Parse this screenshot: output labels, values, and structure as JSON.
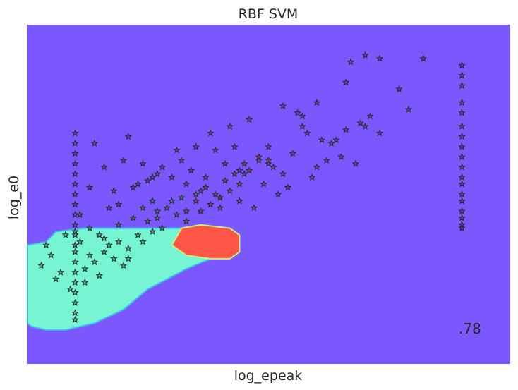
{
  "chart_data": {
    "type": "scatter",
    "title": "RBF SVM",
    "xlabel": "log_epeak",
    "ylabel": "log_e0",
    "score": ".78",
    "xticks": [],
    "yticks": [],
    "xlim": [
      0,
      10
    ],
    "ylim": [
      0,
      10
    ],
    "grid": false,
    "marker": "star",
    "background_colors": {
      "region_outside": "#7b57fe",
      "region_class_1": "#77f5d2",
      "region_class_2": "#fe5647",
      "boundary_1": "#3dbdf0",
      "boundary_2": "#c9f07a",
      "star_edge": "#2b2b2b",
      "star_class_0": "#3d2a8c",
      "star_class_1": "#1f7a40",
      "star_class_2": "#9b1d1d"
    },
    "decision_regions": [
      {
        "class": 1,
        "color": "#77f5d2",
        "polygon": [
          [
            0,
            3.5
          ],
          [
            0.4,
            3.6
          ],
          [
            0.6,
            3.9
          ],
          [
            1.2,
            4.0
          ],
          [
            2.3,
            4.0
          ],
          [
            3.2,
            4.0
          ],
          [
            3.8,
            3.9
          ],
          [
            3.8,
            3.1
          ],
          [
            3.3,
            2.8
          ],
          [
            2.5,
            2.2
          ],
          [
            2.0,
            1.6
          ],
          [
            1.4,
            1.2
          ],
          [
            0.8,
            1.0
          ],
          [
            0.4,
            1.0
          ],
          [
            0.1,
            1.1
          ],
          [
            0,
            1.2
          ]
        ]
      },
      {
        "class": 2,
        "color": "#fe5647",
        "polygon": [
          [
            3.0,
            3.5
          ],
          [
            3.3,
            3.2
          ],
          [
            3.8,
            3.1
          ],
          [
            4.2,
            3.1
          ],
          [
            4.4,
            3.3
          ],
          [
            4.4,
            3.8
          ],
          [
            4.2,
            4.0
          ],
          [
            3.6,
            4.1
          ],
          [
            3.2,
            4.0
          ]
        ]
      }
    ],
    "series": [
      {
        "class": 0,
        "color": "#3d2a8c",
        "x": [
          1.0,
          1.0,
          1.0,
          1.0,
          1.0,
          1.0,
          1.0,
          1.0,
          1.0,
          1.0,
          1.0,
          1.0,
          9.0,
          9.0,
          9.0,
          9.0,
          9.0,
          9.0,
          9.0,
          9.0,
          9.0,
          9.0,
          9.0,
          9.0,
          9.0,
          9.0,
          9.0,
          9.0,
          9.0,
          9.0,
          7.0,
          7.3,
          6.7,
          8.2,
          7.7,
          7.9,
          6.6,
          6.0,
          5.7,
          5.6,
          5.8,
          6.1,
          6.3,
          6.5,
          7.0,
          7.3,
          6.8,
          6.2,
          6.0,
          5.5,
          5.0,
          4.5,
          4.3,
          4.8,
          5.1,
          5.3,
          4.9,
          4.1,
          3.9,
          3.7,
          3.4,
          3.0,
          2.7,
          2.4,
          2.0,
          1.6,
          1.4,
          1.3,
          1.8,
          2.3,
          2.6,
          3.3,
          3.6,
          4.0,
          4.4,
          4.7,
          5.2,
          5.4,
          5.9,
          6.4,
          6.6,
          6.9,
          7.1,
          5.7,
          5.3,
          4.6,
          4.2,
          3.8,
          3.5,
          3.1,
          2.8,
          2.5,
          2.2,
          1.9,
          1.7,
          2.1,
          3.2,
          4.0,
          4.4,
          5.0
        ],
        "y": [
          6.8,
          6.5,
          6.2,
          5.9,
          5.6,
          5.3,
          5.0,
          4.7,
          4.4,
          4.1,
          3.8,
          3.5,
          8.8,
          8.5,
          8.2,
          7.7,
          7.4,
          7.0,
          6.7,
          6.4,
          6.1,
          5.8,
          5.5,
          5.3,
          5.0,
          4.8,
          4.5,
          4.3,
          4.1,
          4.0,
          9.1,
          9.0,
          8.9,
          9.0,
          8.1,
          7.5,
          8.3,
          7.7,
          7.0,
          7.4,
          6.8,
          6.6,
          6.5,
          6.1,
          7.0,
          6.8,
          5.9,
          6.0,
          5.8,
          6.2,
          5.9,
          5.6,
          6.4,
          6.0,
          5.8,
          5.6,
          5.3,
          5.9,
          6.3,
          5.5,
          5.7,
          5.5,
          5.6,
          5.9,
          6.0,
          5.8,
          6.5,
          5.2,
          5.1,
          5.3,
          5.5,
          5.3,
          5.1,
          4.9,
          4.8,
          4.6,
          5.0,
          5.2,
          5.5,
          6.6,
          6.9,
          7.1,
          7.3,
          7.3,
          7.6,
          7.2,
          7.0,
          6.8,
          6.4,
          6.3,
          5.8,
          5.4,
          5.2,
          4.7,
          4.6,
          6.7,
          6.0,
          4.6,
          5.7,
          6.4
        ]
      },
      {
        "class": 1,
        "color": "#1f7a40",
        "x": [
          1.0,
          1.0,
          1.0,
          1.0,
          1.0,
          1.0,
          1.0,
          1.0,
          0.8,
          0.5,
          0.4,
          0.3,
          0.6,
          0.9,
          1.2,
          1.4,
          1.6,
          1.9,
          2.1,
          2.3,
          2.5,
          2.7,
          1.1,
          1.3,
          1.5,
          1.7,
          1.9,
          2.2,
          2.4,
          2.6,
          2.9,
          3.1,
          3.3,
          1.2,
          1.5,
          1.8,
          2.0,
          2.6,
          2.8,
          3.0,
          1.1,
          1.3,
          1.6,
          2.1,
          2.4,
          2.7,
          3.2,
          3.5,
          0.7,
          1.0
        ],
        "y": [
          3.3,
          3.0,
          2.7,
          2.4,
          2.1,
          1.8,
          1.5,
          1.3,
          3.8,
          3.2,
          3.5,
          2.9,
          2.5,
          2.2,
          2.4,
          3.0,
          3.3,
          3.6,
          3.1,
          3.8,
          4.2,
          4.5,
          4.4,
          4.0,
          3.8,
          3.5,
          4.1,
          4.3,
          4.6,
          4.8,
          4.6,
          4.4,
          4.2,
          2.8,
          2.6,
          3.1,
          2.9,
          3.9,
          4.0,
          4.8,
          3.6,
          3.2,
          3.7,
          3.4,
          3.6,
          4.3,
          4.9,
          5.0,
          2.7,
          3.9
        ]
      },
      {
        "class": 2,
        "color": "#9b1d1d",
        "x": [
          3.6,
          3.8,
          4.0,
          4.2,
          4.4,
          3.5,
          3.9,
          4.1,
          4.3,
          4.6,
          3.7,
          4.8,
          4.5,
          3.3,
          5.0
        ],
        "y": [
          4.5,
          4.7,
          4.9,
          5.1,
          5.3,
          4.8,
          5.0,
          5.4,
          5.6,
          5.7,
          5.2,
          6.1,
          5.9,
          4.5,
          6.0
        ]
      }
    ]
  }
}
